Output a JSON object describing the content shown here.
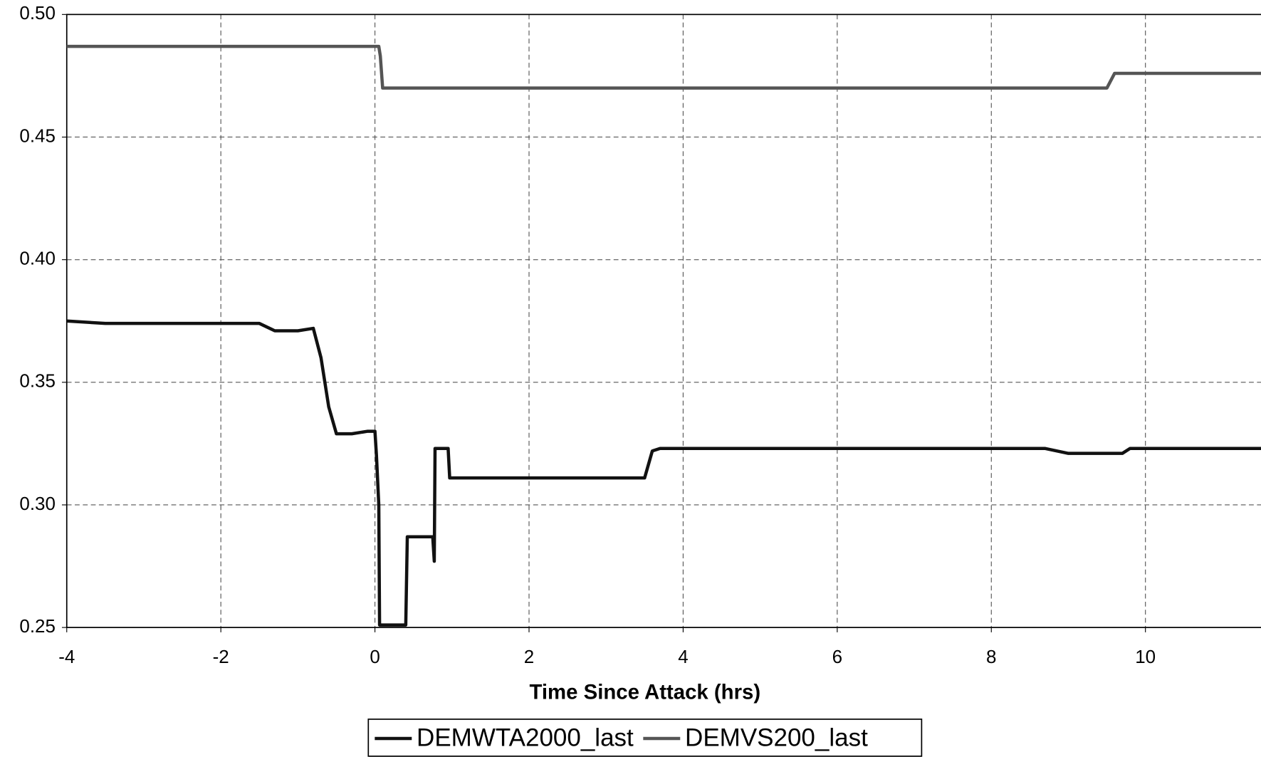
{
  "chart_data": {
    "type": "line",
    "x_label": "Time Since Attack (hrs)",
    "xlim": [
      -4,
      11.5
    ],
    "ylim": [
      0.25,
      0.5
    ],
    "xticks": [
      -4,
      -2,
      0,
      2,
      4,
      6,
      8,
      10
    ],
    "yticks": [
      0.25,
      {
        "value": 0.3,
        "label": "0.30"
      },
      0.35,
      {
        "value": 0.4,
        "label": "0.40"
      },
      0.45,
      {
        "value": 0.5,
        "label": "0.50"
      }
    ],
    "grid": true,
    "legend": "bottom",
    "series": [
      {
        "name": "DEMWTA2000_last",
        "color": "#111111",
        "x": [
          -4,
          -3.5,
          -2,
          -1.5,
          -1.3,
          -1,
          -0.8,
          -0.7,
          -0.6,
          -0.5,
          -0.3,
          -0.1,
          0,
          0.02,
          0.05,
          0.06,
          0.4,
          0.42,
          0.75,
          0.77,
          0.78,
          0.95,
          0.97,
          1.5,
          3.3,
          3.5,
          3.6,
          3.7,
          8.7,
          9,
          9.7,
          9.8,
          11.5
        ],
        "values": [
          0.375,
          0.374,
          0.374,
          0.374,
          0.371,
          0.371,
          0.372,
          0.36,
          0.34,
          0.329,
          0.329,
          0.33,
          0.33,
          0.32,
          0.3,
          0.251,
          0.251,
          0.287,
          0.287,
          0.277,
          0.323,
          0.323,
          0.311,
          0.311,
          0.311,
          0.311,
          0.322,
          0.323,
          0.323,
          0.321,
          0.321,
          0.323,
          0.323
        ]
      },
      {
        "name": "DEMVS200_last",
        "color": "#555555",
        "x": [
          -4,
          0,
          0.05,
          0.07,
          0.1,
          9.3,
          9.5,
          9.6,
          11.5
        ],
        "values": [
          0.487,
          0.487,
          0.487,
          0.483,
          0.47,
          0.47,
          0.47,
          0.476,
          0.476
        ]
      }
    ]
  }
}
